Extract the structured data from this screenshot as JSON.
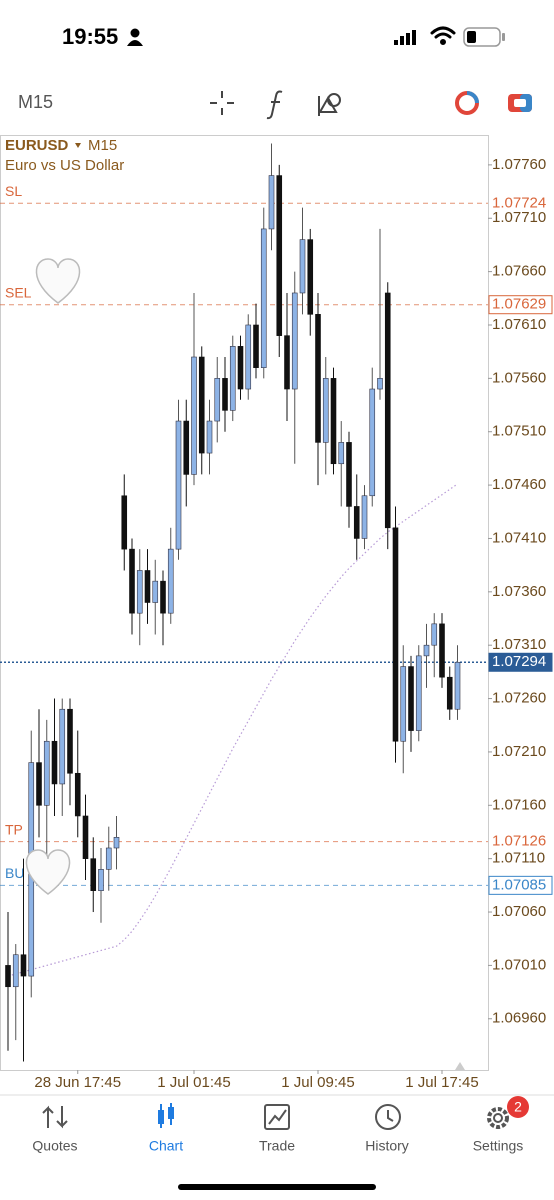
{
  "status_bar": {
    "time": "19:55"
  },
  "toolbar": {
    "timeframe": "M15"
  },
  "chart_data": {
    "type": "candlestick",
    "symbol": "EURUSD",
    "timeframe": "M15",
    "description": "Euro vs US Dollar",
    "up_color": "#8db3e6",
    "down_color": "#111111",
    "categories": [
      null,
      null,
      null,
      null,
      null,
      null,
      null,
      null,
      null,
      "28 Jun 17:45",
      null,
      null,
      null,
      null,
      null,
      null,
      null,
      null,
      null,
      null,
      null,
      null,
      null,
      null,
      "1 Jul 01:45",
      null,
      null,
      null,
      null,
      null,
      null,
      null,
      null,
      null,
      null,
      null,
      null,
      null,
      null,
      null,
      "1 Jul 09:45",
      null,
      null,
      null,
      null,
      null,
      null,
      null,
      null,
      null,
      null,
      null,
      null,
      null,
      null,
      null,
      "1 Jul 17:45",
      null,
      null
    ],
    "open": [
      1.0701,
      1.0699,
      1.0702,
      1.07,
      1.072,
      1.0716,
      1.0722,
      1.0718,
      1.0725,
      1.0719,
      1.0715,
      1.0711,
      1.0708,
      1.071,
      1.0712,
      1.0745,
      1.074,
      1.0734,
      1.0738,
      1.0735,
      1.0737,
      1.0734,
      1.074,
      1.0752,
      1.0747,
      1.0758,
      1.0749,
      1.0752,
      1.0756,
      1.0753,
      1.0759,
      1.0755,
      1.0761,
      1.0757,
      1.077,
      1.0775,
      1.076,
      1.0755,
      1.0764,
      1.0769,
      1.0762,
      1.075,
      1.0756,
      1.0748,
      1.075,
      1.0744,
      1.0741,
      1.0745,
      1.0755,
      1.0764,
      1.0742,
      1.0722,
      1.0729,
      1.0723,
      1.073,
      1.0731,
      1.0733,
      1.0728,
      1.0725
    ],
    "high": [
      1.0706,
      1.0703,
      1.0711,
      1.0723,
      1.0725,
      1.0724,
      1.0726,
      1.0726,
      1.0726,
      1.0723,
      1.0717,
      1.0713,
      1.0712,
      1.0714,
      1.0715,
      1.0747,
      1.0741,
      1.074,
      1.074,
      1.0739,
      1.0738,
      1.0742,
      1.0754,
      1.0754,
      1.0764,
      1.0759,
      1.0754,
      1.0758,
      1.0758,
      1.076,
      1.076,
      1.0762,
      1.0763,
      1.0772,
      1.0778,
      1.0776,
      1.0764,
      1.0766,
      1.0772,
      1.077,
      1.0764,
      1.0758,
      1.0757,
      1.0752,
      1.0751,
      1.0747,
      1.0746,
      1.0757,
      1.077,
      1.0765,
      1.0744,
      1.0731,
      1.073,
      1.0731,
      1.0733,
      1.0734,
      1.0734,
      1.0729,
      1.0731
    ],
    "low": [
      1.0693,
      1.0694,
      1.0692,
      1.0698,
      1.0713,
      1.071,
      1.0715,
      1.0715,
      1.0716,
      1.0713,
      1.0709,
      1.0706,
      1.0705,
      1.0708,
      1.071,
      1.0738,
      1.0732,
      1.0731,
      1.0733,
      1.0732,
      1.0731,
      1.0733,
      1.0739,
      1.0744,
      1.0746,
      1.0747,
      1.0747,
      1.075,
      1.0751,
      1.0752,
      1.0754,
      1.0754,
      1.0756,
      1.0756,
      1.0768,
      1.0758,
      1.0752,
      1.0748,
      1.0762,
      1.076,
      1.0746,
      1.0747,
      1.0747,
      1.0744,
      1.0742,
      1.0739,
      1.074,
      1.0744,
      1.0754,
      1.074,
      1.072,
      1.0719,
      1.0721,
      1.0722,
      1.0727,
      1.0728,
      1.0727,
      1.0724,
      1.0724
    ],
    "close": [
      1.0699,
      1.0702,
      1.07,
      1.072,
      1.0716,
      1.0722,
      1.0718,
      1.0725,
      1.0719,
      1.0715,
      1.0711,
      1.0708,
      1.071,
      1.0712,
      1.0713,
      1.074,
      1.0734,
      1.0738,
      1.0735,
      1.0737,
      1.0734,
      1.074,
      1.0752,
      1.0747,
      1.0758,
      1.0749,
      1.0752,
      1.0756,
      1.0753,
      1.0759,
      1.0755,
      1.0761,
      1.0757,
      1.077,
      1.0775,
      1.076,
      1.0755,
      1.0764,
      1.0769,
      1.0762,
      1.075,
      1.0756,
      1.0748,
      1.075,
      1.0744,
      1.0741,
      1.0745,
      1.0755,
      1.0756,
      1.0742,
      1.0722,
      1.0729,
      1.0723,
      1.073,
      1.0731,
      1.0733,
      1.0728,
      1.0725,
      1.07294
    ],
    "ma": {
      "color": "#b79ad6",
      "values": [
        1.07,
        1.07002,
        1.07004,
        1.07006,
        1.07008,
        1.0701,
        1.07012,
        1.07014,
        1.07016,
        1.07018,
        1.0702,
        1.07022,
        1.07024,
        1.07026,
        1.07028,
        1.07034,
        1.07042,
        1.07052,
        1.07063,
        1.07075,
        1.07088,
        1.07101,
        1.07115,
        1.07129,
        1.07143,
        1.07157,
        1.07171,
        1.07185,
        1.07199,
        1.07213,
        1.07226,
        1.07239,
        1.07252,
        1.07265,
        1.07278,
        1.0729,
        1.07302,
        1.07314,
        1.07325,
        1.07336,
        1.07346,
        1.07356,
        1.07365,
        1.07374,
        1.07382,
        1.07389,
        1.07396,
        1.07403,
        1.0741,
        1.07416,
        1.07421,
        1.07426,
        1.07431,
        1.07436,
        1.07441,
        1.07446,
        1.07451,
        1.07456,
        1.07461
      ]
    },
    "ylim": [
      1.06912,
      1.07788
    ],
    "yticks": [
      {
        "value": 1.0696,
        "label": "1.06960"
      },
      {
        "value": 1.0701,
        "label": "1.07010"
      },
      {
        "value": 1.0706,
        "label": "1.07060"
      },
      {
        "value": 1.0711,
        "label": "1.07110"
      },
      {
        "value": 1.0716,
        "label": "1.07160"
      },
      {
        "value": 1.0721,
        "label": "1.07210"
      },
      {
        "value": 1.0726,
        "label": "1.07260"
      },
      {
        "value": 1.0731,
        "label": "1.07310"
      },
      {
        "value": 1.0736,
        "label": "1.07360"
      },
      {
        "value": 1.0741,
        "label": "1.07410"
      },
      {
        "value": 1.0746,
        "label": "1.07460"
      },
      {
        "value": 1.0751,
        "label": "1.07510"
      },
      {
        "value": 1.0756,
        "label": "1.07560"
      },
      {
        "value": 1.0761,
        "label": "1.07610"
      },
      {
        "value": 1.0766,
        "label": "1.07660"
      },
      {
        "value": 1.0771,
        "label": "1.07710"
      },
      {
        "value": 1.0776,
        "label": "1.07760"
      }
    ],
    "levels": [
      {
        "label": "SL",
        "value": 1.07724,
        "color": "#d9663b",
        "style": "plain"
      },
      {
        "label": "SEL",
        "value": 1.07629,
        "color": "#d9663b",
        "style": "boxed"
      },
      {
        "value": 1.07294,
        "color": "#2b5c96",
        "style": "filled"
      },
      {
        "label": "TP",
        "value": 1.07126,
        "color": "#d9663b",
        "style": "plain"
      },
      {
        "label": "BU",
        "value": 1.07085,
        "color": "#3a86c8",
        "style": "boxed"
      }
    ]
  },
  "tabs": [
    {
      "label": "Quotes"
    },
    {
      "label": "Chart",
      "active": true
    },
    {
      "label": "Trade"
    },
    {
      "label": "History"
    },
    {
      "label": "Settings",
      "badge": 2
    }
  ]
}
